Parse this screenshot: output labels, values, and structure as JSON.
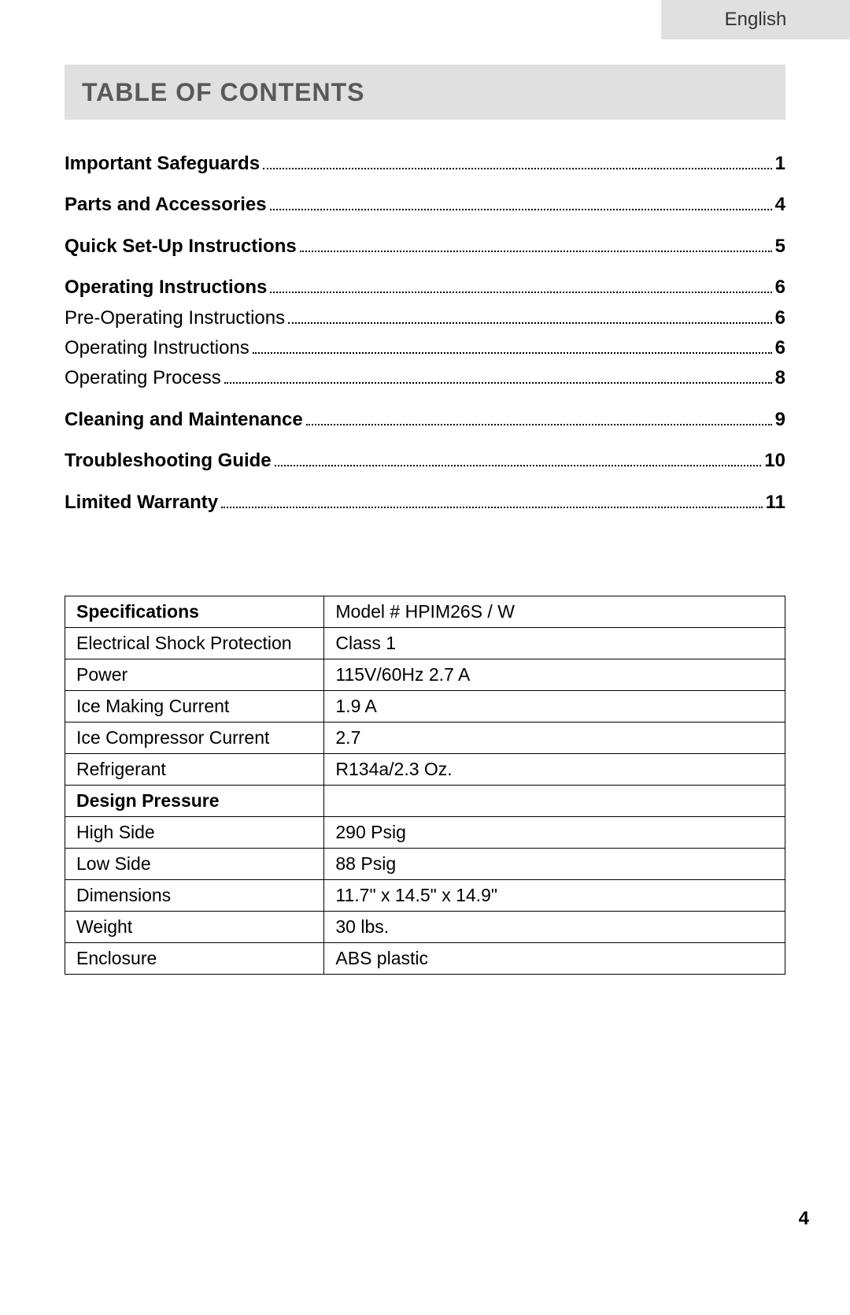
{
  "language_tab": "English",
  "heading": "TABLE OF CONTENTS",
  "toc": [
    {
      "label": "Important Safeguards",
      "page": "1",
      "bold": true,
      "section": true
    },
    {
      "label": "Parts and Accessories",
      "page": "4",
      "bold": true,
      "section": true
    },
    {
      "label": "Quick Set-Up Instructions",
      "page": "5",
      "bold": true,
      "section": true
    },
    {
      "label": "Operating Instructions",
      "page": "6",
      "bold": true,
      "section": true
    },
    {
      "label": "Pre-Operating Instructions",
      "page": "6",
      "bold": false,
      "section": false
    },
    {
      "label": "Operating Instructions",
      "page": "6",
      "bold": false,
      "section": false
    },
    {
      "label": "Operating Process",
      "page": "8",
      "bold": false,
      "section": false
    },
    {
      "label": "Cleaning and Maintenance",
      "page": "9",
      "bold": true,
      "section": true
    },
    {
      "label": "Troubleshooting Guide",
      "page": "10",
      "bold": true,
      "section": true
    },
    {
      "label": "Limited Warranty",
      "page": "11",
      "bold": true,
      "section": true
    }
  ],
  "spec_table": {
    "rows": [
      {
        "c1": "Specifications",
        "c1_bold": true,
        "c2": "Model # HPIM26S / W"
      },
      {
        "c1": "Electrical Shock Protection",
        "c1_bold": false,
        "c2": "Class 1"
      },
      {
        "c1": "Power",
        "c1_bold": false,
        "c2": "115V/60Hz 2.7 A"
      },
      {
        "c1": "Ice Making Current",
        "c1_bold": false,
        "c2": "1.9 A"
      },
      {
        "c1": "Ice Compressor Current",
        "c1_bold": false,
        "c2": "2.7"
      },
      {
        "c1": "Refrigerant",
        "c1_bold": false,
        "c2": "R134a/2.3 Oz."
      },
      {
        "c1": "Design Pressure",
        "c1_bold": true,
        "c2": ""
      },
      {
        "c1": "High Side",
        "c1_bold": false,
        "c2": "290 Psig"
      },
      {
        "c1": "Low Side",
        "c1_bold": false,
        "c2": "88 Psig"
      },
      {
        "c1": "Dimensions",
        "c1_bold": false,
        "c2": "11.7\" x 14.5\" x 14.9\""
      },
      {
        "c1": "Weight",
        "c1_bold": false,
        "c2": "30 lbs."
      },
      {
        "c1": "Enclosure",
        "c1_bold": false,
        "c2": "ABS plastic"
      }
    ]
  },
  "page_number": "4",
  "colors": {
    "tab_bg": "#e0e0e0",
    "heading_bg": "#e0e0e0",
    "heading_color": "#595959",
    "text": "#000000",
    "border": "#000000",
    "page_bg": "#ffffff"
  },
  "typography": {
    "heading_fontsize": 32,
    "body_fontsize": 24,
    "table_fontsize": 23
  }
}
